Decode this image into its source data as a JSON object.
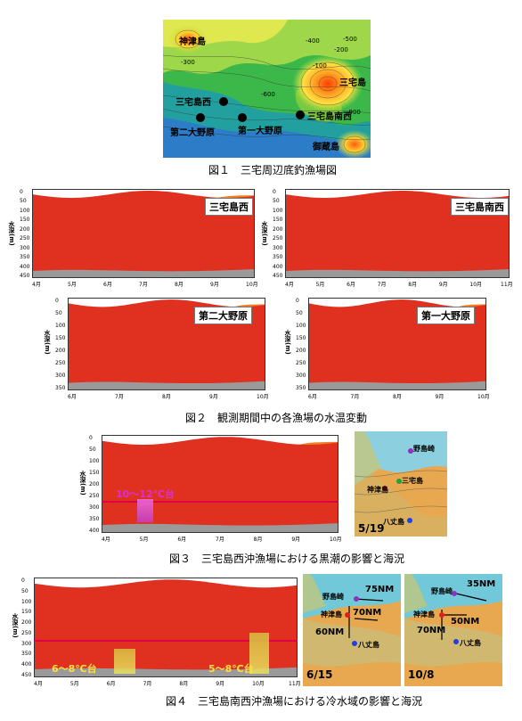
{
  "fig1": {
    "caption": "図１　三宅周辺底釣漁場図",
    "labels": {
      "kozu": "神津島",
      "miyake": "三宅島",
      "miyake_nishi": "三宅島西",
      "miyake_nansei": "三宅島南西",
      "dai2": "第二大野原",
      "dai1": "第一大野原",
      "mikura": "御蔵島"
    },
    "contours": [
      "-100",
      "-200",
      "-300",
      "-400",
      "-500",
      "-600",
      "-900"
    ]
  },
  "fig2": {
    "caption": "図２　観測期間中の各漁場の水温変動",
    "panels": [
      {
        "title": "三宅島西",
        "ylabel": "水深(m)",
        "yticks": [
          "0",
          "50",
          "100",
          "150",
          "200",
          "250",
          "300",
          "350",
          "400",
          "450"
        ],
        "xticks": [
          "4月",
          "5月",
          "6月",
          "7月",
          "8月",
          "9月",
          "10月"
        ]
      },
      {
        "title": "三宅島南西",
        "ylabel": "水深(m)",
        "yticks": [
          "0",
          "50",
          "100",
          "150",
          "200",
          "250",
          "300",
          "350",
          "400",
          "450"
        ],
        "xticks": [
          "4月",
          "5月",
          "6月",
          "7月",
          "8月",
          "9月",
          "10月",
          "11月"
        ]
      },
      {
        "title": "第二大野原",
        "ylabel": "水深(m)",
        "yticks": [
          "0",
          "50",
          "100",
          "150",
          "200",
          "250",
          "300",
          "350"
        ],
        "xticks": [
          "6月",
          "7月",
          "8月",
          "9月",
          "10月"
        ]
      },
      {
        "title": "第一大野原",
        "ylabel": "水深(m)",
        "yticks": [
          "0",
          "50",
          "100",
          "150",
          "200",
          "250",
          "300",
          "350"
        ],
        "xticks": [
          "6月",
          "7月",
          "8月",
          "9月",
          "10月"
        ]
      }
    ]
  },
  "fig3": {
    "caption": "図３　三宅島西沖漁場における黒潮の影響と海況",
    "annotation": "10～12℃台",
    "ylabel": "水深(m)",
    "yticks": [
      "0",
      "50",
      "100",
      "150",
      "200",
      "250",
      "300",
      "350",
      "400"
    ],
    "xticks": [
      "4月",
      "5月",
      "6月",
      "7月",
      "8月",
      "9月",
      "10月"
    ],
    "map": {
      "date": "5/19",
      "nojimazaki": "野島崎",
      "miyake": "三宅島",
      "kozu": "神津島",
      "hachijo": "八丈島"
    }
  },
  "fig4": {
    "caption": "図４　三宅島南西沖漁場における冷水域の影響と海況",
    "annotation_left": "6～8℃台",
    "annotation_right": "5～8℃台",
    "ylabel": "水深(m)",
    "yticks": [
      "0",
      "50",
      "100",
      "150",
      "200",
      "250",
      "300",
      "350",
      "400",
      "450"
    ],
    "xticks": [
      "4月",
      "5月",
      "6月",
      "7月",
      "8月",
      "9月",
      "10月",
      "11月"
    ],
    "map1": {
      "date": "6/15",
      "nojimazaki": "野島崎",
      "kozu": "神津島",
      "hachijo": "八丈島",
      "nm1": "75NM",
      "nm2": "70NM",
      "nm3": "60NM"
    },
    "map2": {
      "date": "10/8",
      "nojimazaki": "野島崎",
      "kozu": "神津島",
      "hachijo": "八丈島",
      "nm1": "35NM",
      "nm2": "50NM",
      "nm3": "70NM"
    }
  }
}
